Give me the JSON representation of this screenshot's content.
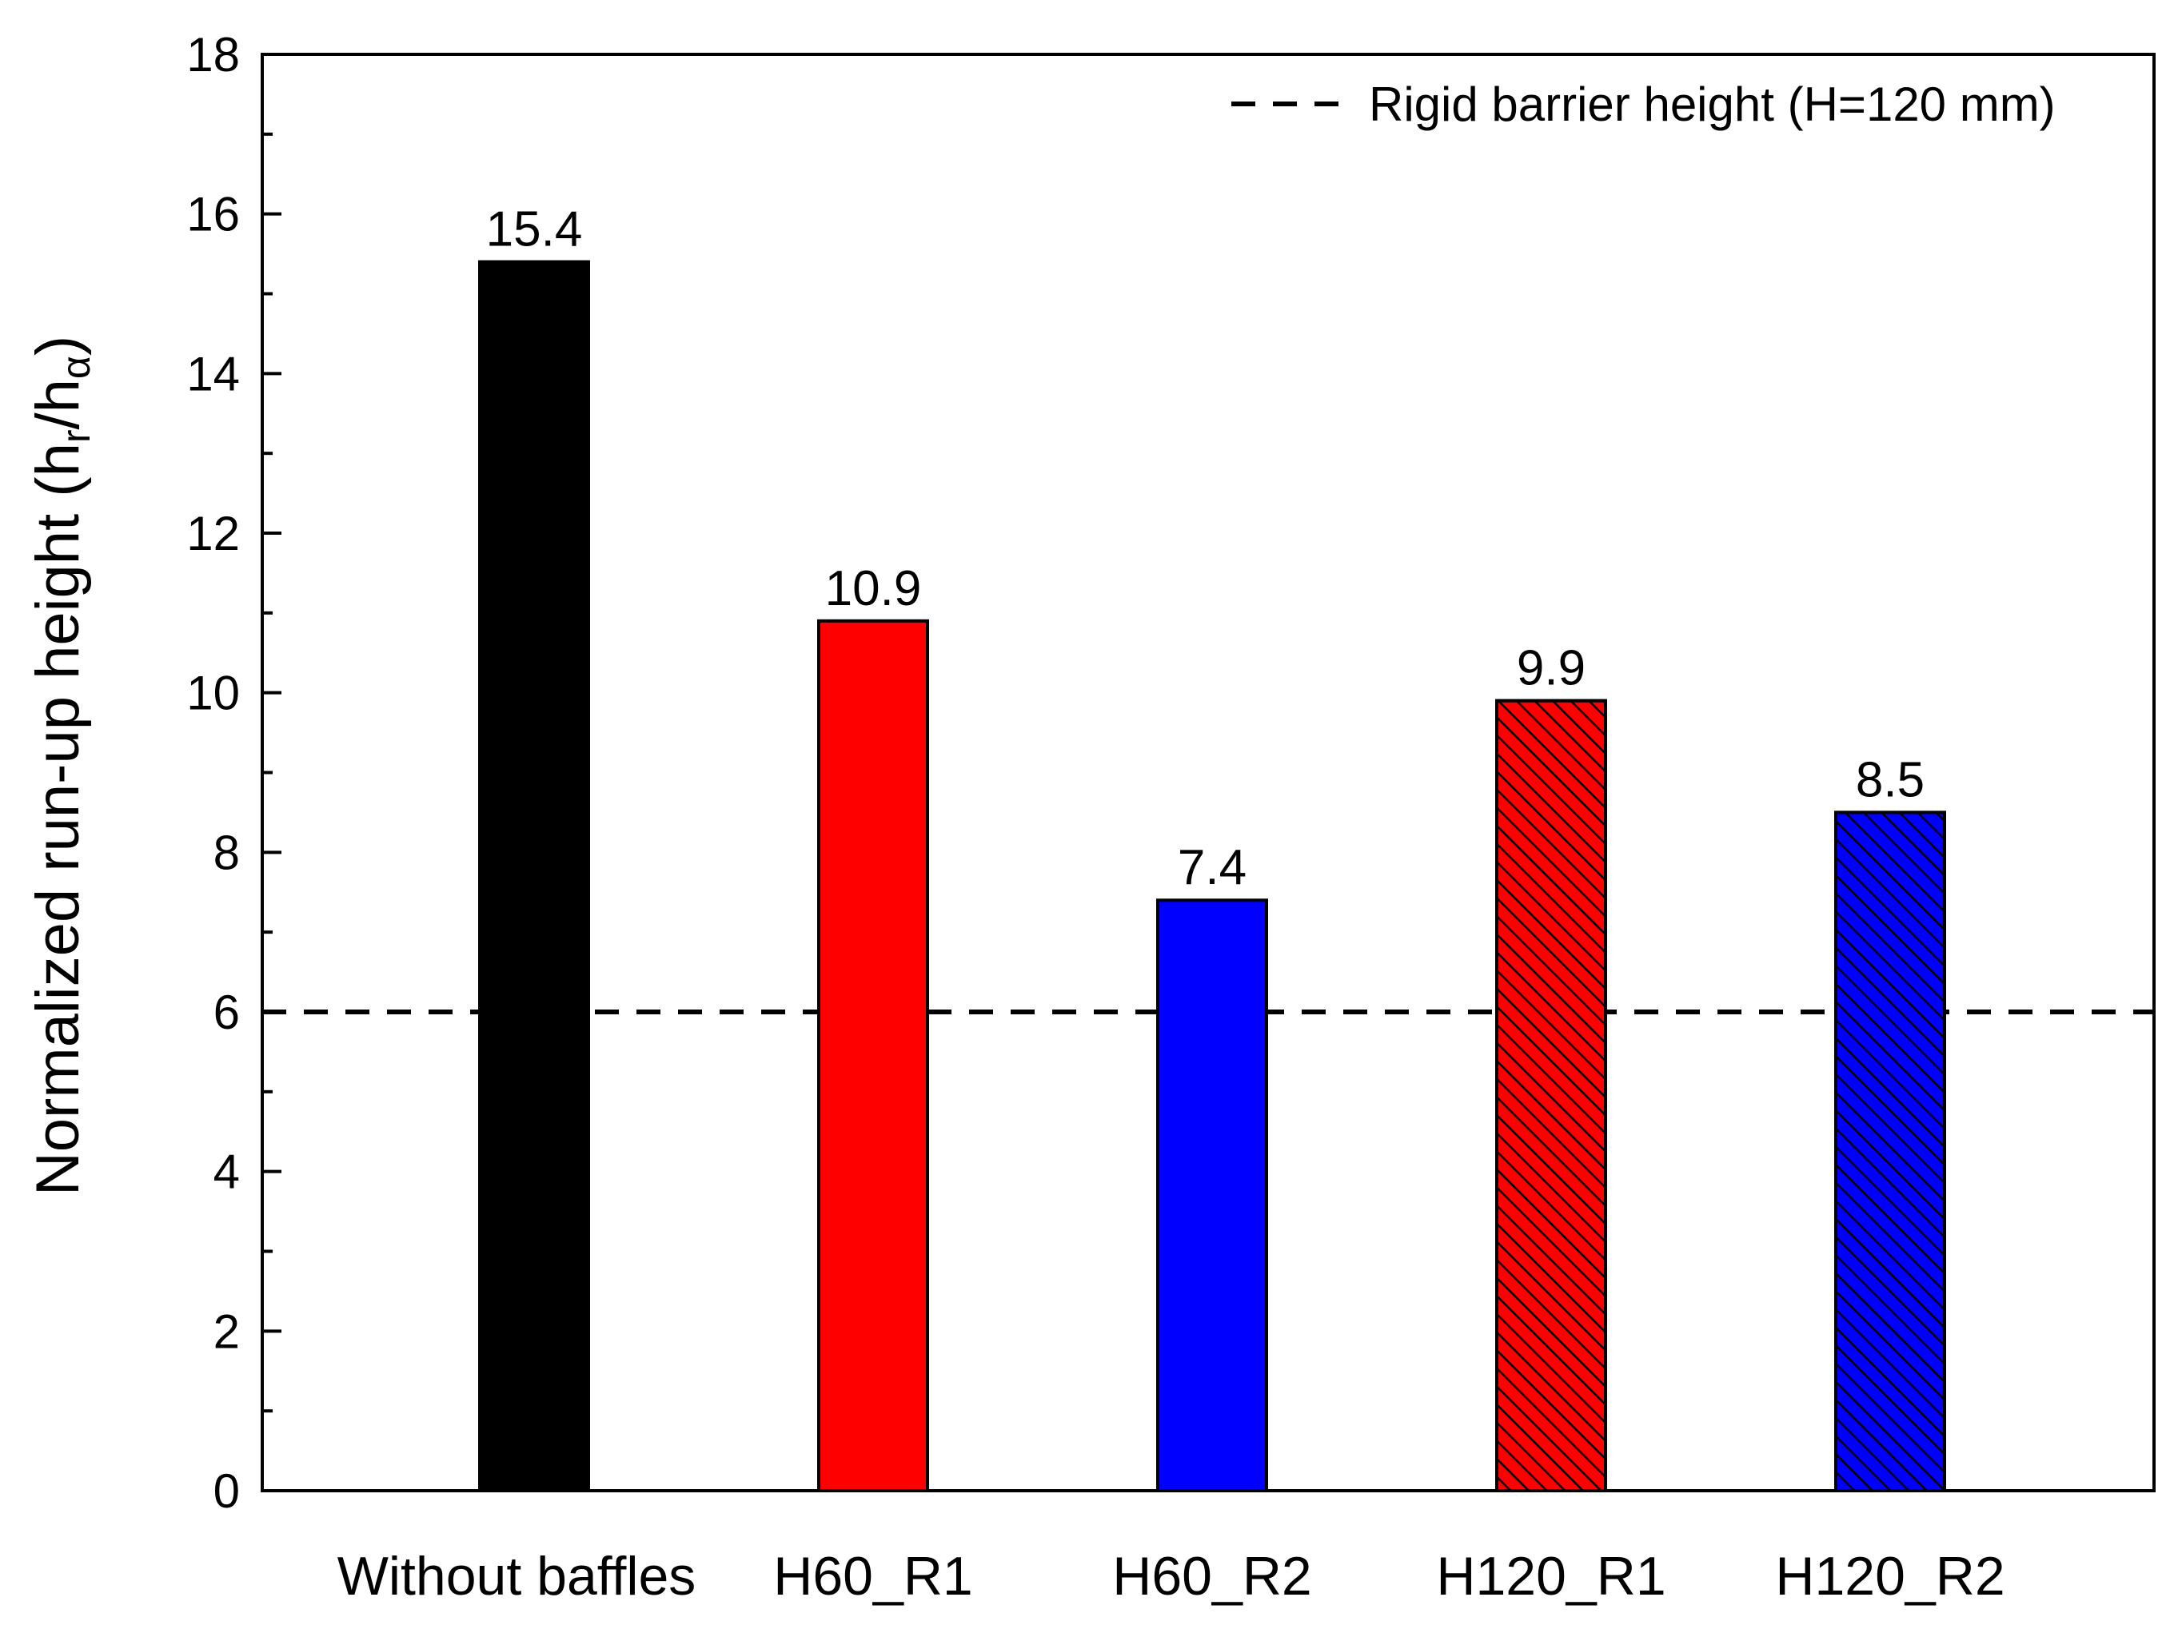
{
  "chart_data": {
    "type": "bar",
    "categories": [
      "Without baffles",
      "H60_R1",
      "H60_R2",
      "H120_R1",
      "H120_R2"
    ],
    "values": [
      15.4,
      10.9,
      7.4,
      9.9,
      8.5
    ],
    "value_labels": [
      "15.4",
      "10.9",
      "7.4",
      "9.9",
      "8.5"
    ],
    "bar_fill": [
      "#000000",
      "#ff0000",
      "#0000ff",
      "#ff0000",
      "#0000ff"
    ],
    "bar_hatched": [
      false,
      false,
      false,
      true,
      true
    ],
    "ylabel": {
      "main": "Normalized run-up height (h",
      "sub1": "r",
      "mid": "/h",
      "sub2": "α",
      "end": ")"
    },
    "ylim": [
      0,
      18
    ],
    "yticks": [
      0,
      2,
      4,
      6,
      8,
      10,
      12,
      14,
      16,
      18
    ],
    "minor_ytick_step": 1,
    "grid": false,
    "reference_line": {
      "value": 6,
      "style": "dashed",
      "color": "#000000",
      "label": "Rigid barrier height (H=120 mm)"
    },
    "legend_position": "top-right"
  }
}
